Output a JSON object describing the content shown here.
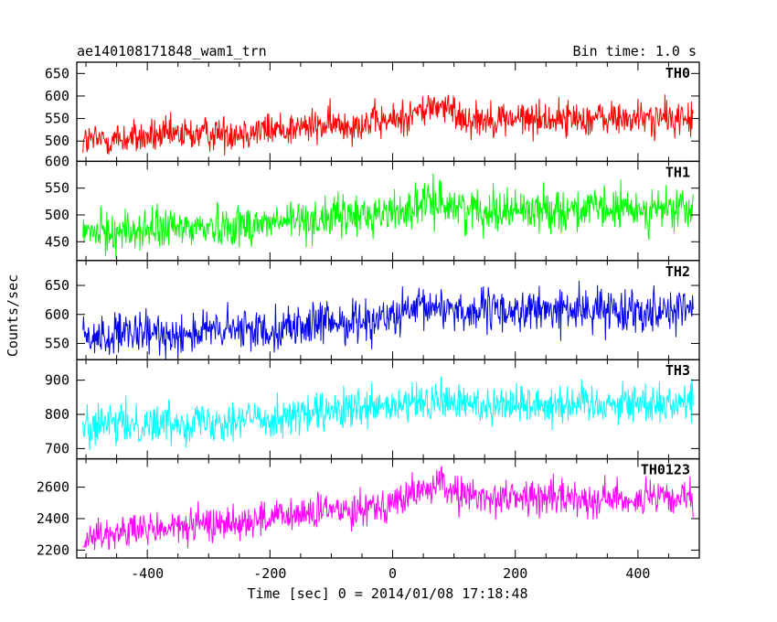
{
  "chart_data": {
    "type": "line",
    "title": "ae140108171848_wam1_trn",
    "bin_time_label": "Bin time: 1.0 s",
    "xlabel": "Time [sec] 0 = 2014/01/08 17:18:48",
    "ylabel": "Counts/sec",
    "xlim": [
      -515,
      500
    ],
    "x_ticks": [
      -400,
      -200,
      0,
      200,
      400
    ],
    "grid": false,
    "panels": [
      {
        "name": "TH0",
        "color": "#ff0000",
        "ylim": [
          455,
          675
        ],
        "y_ticks": [
          500,
          550,
          600,
          650
        ],
        "trend": [
          [
            -505,
            500
          ],
          [
            -200,
            525
          ],
          [
            0,
            545
          ],
          [
            75,
            580
          ],
          [
            120,
            550
          ],
          [
            490,
            550
          ]
        ],
        "noise": 28
      },
      {
        "name": "TH1",
        "color": "#00ff00",
        "ylim": [
          415,
          600
        ],
        "y_ticks": [
          450,
          500,
          550,
          600
        ],
        "trend": [
          [
            -505,
            465
          ],
          [
            -200,
            485
          ],
          [
            0,
            505
          ],
          [
            75,
            525
          ],
          [
            120,
            510
          ],
          [
            490,
            510
          ]
        ],
        "noise": 28
      },
      {
        "name": "TH2",
        "color": "#0000ee",
        "ylim": [
          522,
          693
        ],
        "y_ticks": [
          550,
          600,
          650
        ],
        "trend": [
          [
            -505,
            560
          ],
          [
            -200,
            575
          ],
          [
            0,
            595
          ],
          [
            75,
            615
          ],
          [
            120,
            605
          ],
          [
            490,
            610
          ]
        ],
        "noise": 26
      },
      {
        "name": "TH3",
        "color": "#00ffff",
        "ylim": [
          670,
          960
        ],
        "y_ticks": [
          700,
          800,
          900
        ],
        "trend": [
          [
            -505,
            765
          ],
          [
            -200,
            790
          ],
          [
            0,
            820
          ],
          [
            75,
            840
          ],
          [
            120,
            830
          ],
          [
            490,
            835
          ]
        ],
        "noise": 42
      },
      {
        "name": "TH0123",
        "color": "#ff00ff",
        "ylim": [
          2150,
          2780
        ],
        "y_ticks": [
          2200,
          2400,
          2600
        ],
        "trend": [
          [
            -505,
            2290
          ],
          [
            -200,
            2400
          ],
          [
            0,
            2500
          ],
          [
            75,
            2620
          ],
          [
            120,
            2540
          ],
          [
            490,
            2520
          ]
        ],
        "noise": 80
      }
    ]
  }
}
